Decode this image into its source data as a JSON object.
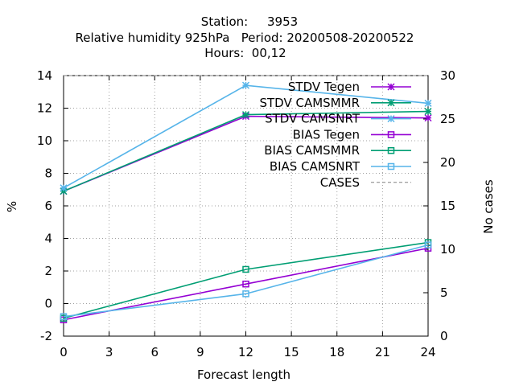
{
  "chart_data": {
    "type": "line",
    "title_lines": [
      "Station:     3953",
      "Relative humidity 925hPa   Period: 20200508-20200522",
      "Hours:  00,12"
    ],
    "xlabel": "Forecast length",
    "ylabel": "%",
    "y2label": "No cases",
    "xlim": [
      0,
      24
    ],
    "ylim": [
      -2,
      14
    ],
    "y2lim": [
      0,
      30
    ],
    "xticks": [
      0,
      3,
      6,
      9,
      12,
      15,
      18,
      21,
      24
    ],
    "yticks": [
      -2,
      0,
      2,
      4,
      6,
      8,
      10,
      12,
      14
    ],
    "y2ticks": [
      0,
      5,
      10,
      15,
      20,
      25,
      30
    ],
    "grid": true,
    "legend_position": "top-right",
    "x": [
      0,
      12,
      24
    ],
    "series": [
      {
        "name": "STDV Tegen",
        "axis": "y",
        "values": [
          6.9,
          11.5,
          11.4
        ],
        "color": "#9400d3",
        "marker": "star",
        "dash": "solid"
      },
      {
        "name": "STDV CAMSMMR",
        "axis": "y",
        "values": [
          6.9,
          11.6,
          11.8
        ],
        "color": "#009e73",
        "marker": "star",
        "dash": "solid"
      },
      {
        "name": "STDV CAMSNRT",
        "axis": "y",
        "values": [
          7.1,
          13.4,
          12.3
        ],
        "color": "#56b4e9",
        "marker": "star",
        "dash": "solid"
      },
      {
        "name": "BIAS Tegen",
        "axis": "y",
        "values": [
          -1.0,
          1.2,
          3.4
        ],
        "color": "#9400d3",
        "marker": "square",
        "dash": "solid"
      },
      {
        "name": "BIAS CAMSMMR",
        "axis": "y",
        "values": [
          -0.9,
          2.1,
          3.75
        ],
        "color": "#009e73",
        "marker": "square",
        "dash": "solid"
      },
      {
        "name": "BIAS CAMSNRT",
        "axis": "y",
        "values": [
          -0.8,
          0.6,
          3.6
        ],
        "color": "#56b4e9",
        "marker": "square",
        "dash": "solid"
      },
      {
        "name": "CASES",
        "axis": "y2",
        "values": [
          30,
          30,
          30
        ],
        "color": "#808080",
        "marker": "none",
        "dash": "dashed"
      }
    ]
  }
}
